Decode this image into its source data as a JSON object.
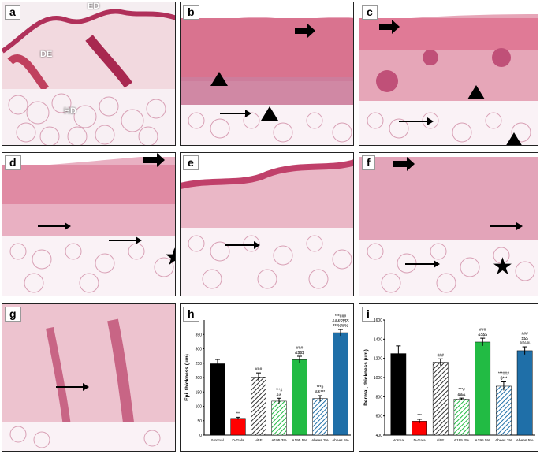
{
  "panels": {
    "a": {
      "label": "a",
      "tissue_labels": {
        "ed": "ED",
        "de": "DE",
        "hd": "HD"
      }
    },
    "b": {
      "label": "b"
    },
    "c": {
      "label": "c"
    },
    "d": {
      "label": "d"
    },
    "e": {
      "label": "e"
    },
    "f": {
      "label": "f"
    },
    "g": {
      "label": "g"
    },
    "h": {
      "label": "h"
    },
    "i": {
      "label": "i"
    }
  },
  "colors": {
    "normal": "#000000",
    "dgala": "#ff0000",
    "vite": "#555555",
    "a195_3": "#22bb44",
    "a195_5": "#22bb44",
    "abees_3": "#1f6fa8",
    "abees_5": "#1f6fa8"
  },
  "chart_data": [
    {
      "type": "bar",
      "panel": "h",
      "categories": [
        "Normal",
        "D-Gala",
        "vit E",
        "A195 3%",
        "A195 5%",
        "Abees 3%",
        "Abees 5%"
      ],
      "values": [
        248,
        58,
        202,
        118,
        262,
        127,
        356
      ],
      "errors": [
        15,
        4,
        14,
        10,
        12,
        10,
        11
      ],
      "ylabel": "Epi. thickness (um)",
      "ylim": [
        0,
        400
      ],
      "yticks": [
        0,
        50,
        100,
        150,
        200,
        250,
        300,
        350
      ],
      "annotations": [
        "",
        "***",
        "###",
        "***#\n&&",
        "###\n&$$$",
        "***#\n&&***",
        "***###\n&&&$$$$\n***%%%"
      ]
    },
    {
      "type": "bar",
      "panel": "i",
      "categories": [
        "Normal",
        "D-Gala",
        "vit E",
        "A195 3%",
        "A195 5%",
        "Abees 3%",
        "Abees 5%"
      ],
      "values": [
        1250,
        545,
        1160,
        775,
        1370,
        910,
        1280
      ],
      "errors": [
        80,
        20,
        35,
        10,
        40,
        45,
        40
      ],
      "ylabel": "Dermal, thickness (um)",
      "ylim": [
        400,
        1600
      ],
      "yticks": [
        400,
        600,
        800,
        1000,
        1200,
        1400,
        1600
      ],
      "annotations": [
        "",
        "***",
        "###",
        "***#\n&&&",
        "###\n&$$$",
        "***###\n$***",
        "###\n$$$\n%%%"
      ]
    }
  ]
}
